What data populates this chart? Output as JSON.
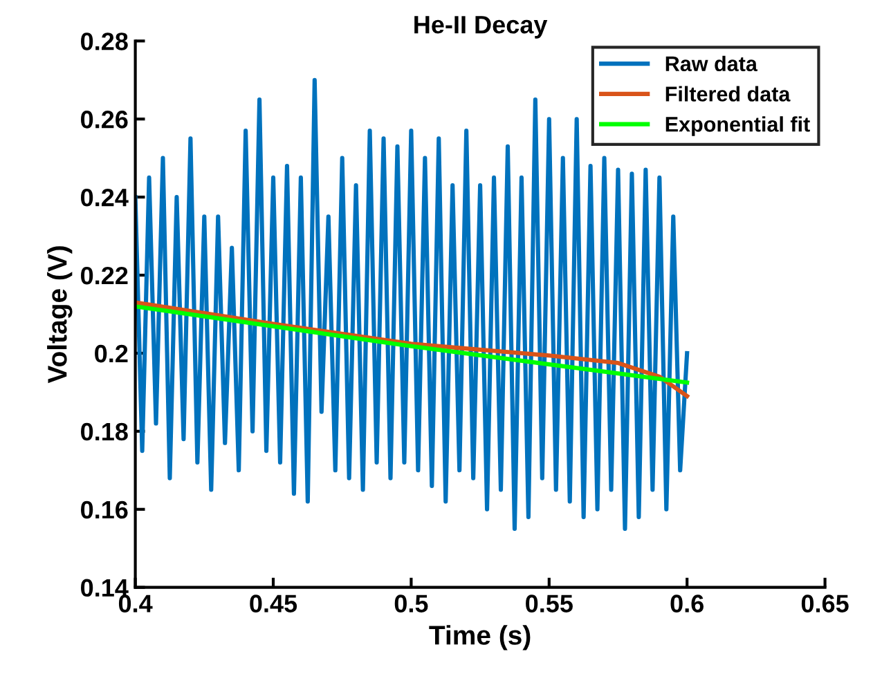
{
  "chart_data": {
    "type": "line",
    "title": "He-II Decay",
    "xlabel": "Time (s)",
    "ylabel": "Voltage (V)",
    "xlim": [
      0.4,
      0.65
    ],
    "xticks": [
      0.4,
      0.45,
      0.5,
      0.55,
      0.6,
      0.65
    ],
    "ylim": [
      0.14,
      0.28
    ],
    "yticks": [
      0.14,
      0.16,
      0.18,
      0.2,
      0.22,
      0.24,
      0.26,
      0.28
    ],
    "grid": false,
    "legend": "top right",
    "marker": "none",
    "line_style": "solid",
    "series": [
      {
        "name": "Raw data",
        "color": "#0072bd",
        "x": [
          0.4,
          0.4025,
          0.405,
          0.4075,
          0.41,
          0.4125,
          0.415,
          0.4175,
          0.42,
          0.4225,
          0.425,
          0.4275,
          0.43,
          0.4325,
          0.435,
          0.4375,
          0.44,
          0.4425,
          0.445,
          0.4475,
          0.45,
          0.4525,
          0.455,
          0.4575,
          0.46,
          0.4625,
          0.465,
          0.4675,
          0.47,
          0.4725,
          0.475,
          0.4775,
          0.48,
          0.4825,
          0.485,
          0.4875,
          0.49,
          0.4925,
          0.495,
          0.4975,
          0.5,
          0.5025,
          0.505,
          0.5075,
          0.51,
          0.5125,
          0.515,
          0.5175,
          0.52,
          0.5225,
          0.525,
          0.5275,
          0.53,
          0.5325,
          0.535,
          0.5375,
          0.54,
          0.5425,
          0.545,
          0.5475,
          0.55,
          0.5525,
          0.555,
          0.5575,
          0.56,
          0.5625,
          0.565,
          0.5675,
          0.57,
          0.5725,
          0.575,
          0.5775,
          0.58,
          0.5825,
          0.585,
          0.5875,
          0.59,
          0.5925,
          0.595,
          0.5975,
          0.6
        ],
        "values": [
          0.24,
          0.175,
          0.245,
          0.182,
          0.25,
          0.168,
          0.24,
          0.178,
          0.255,
          0.172,
          0.235,
          0.165,
          0.235,
          0.177,
          0.227,
          0.17,
          0.257,
          0.18,
          0.265,
          0.175,
          0.245,
          0.172,
          0.248,
          0.164,
          0.245,
          0.162,
          0.27,
          0.185,
          0.235,
          0.17,
          0.25,
          0.168,
          0.243,
          0.165,
          0.257,
          0.172,
          0.255,
          0.168,
          0.253,
          0.172,
          0.257,
          0.17,
          0.25,
          0.166,
          0.255,
          0.162,
          0.243,
          0.17,
          0.257,
          0.168,
          0.243,
          0.16,
          0.245,
          0.165,
          0.253,
          0.155,
          0.245,
          0.158,
          0.265,
          0.168,
          0.26,
          0.165,
          0.25,
          0.162,
          0.26,
          0.158,
          0.248,
          0.16,
          0.25,
          0.165,
          0.247,
          0.155,
          0.246,
          0.158,
          0.247,
          0.165,
          0.245,
          0.16,
          0.235,
          0.17,
          0.2
        ]
      },
      {
        "name": "Filtered data",
        "color": "#d95319",
        "x": [
          0.4,
          0.45,
          0.5,
          0.55,
          0.575,
          0.59,
          0.6
        ],
        "values": [
          0.213,
          0.2075,
          0.2024,
          0.1994,
          0.1975,
          0.194,
          0.189
        ]
      },
      {
        "name": "Exponential fit",
        "color": "#00ff00",
        "x": [
          0.4,
          0.5,
          0.6
        ],
        "values": [
          0.212,
          0.2018,
          0.1925
        ]
      }
    ]
  }
}
